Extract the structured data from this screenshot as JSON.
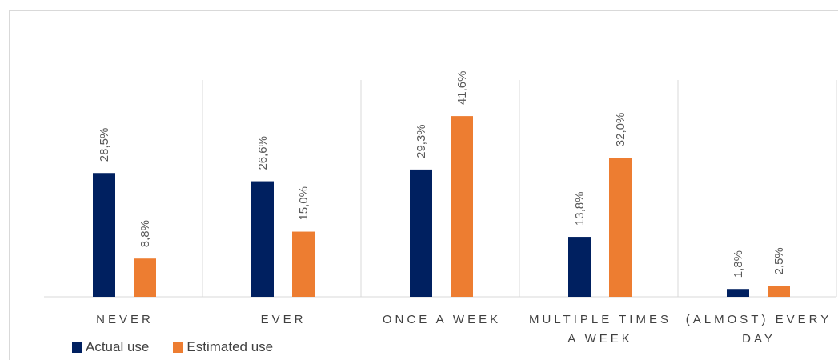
{
  "chart_data": {
    "type": "bar",
    "categories": [
      "NEVER",
      "EVER",
      "ONCE A WEEK",
      "MULTIPLE TIMES A WEEK",
      "(ALMOST) EVERY DAY"
    ],
    "category_lines": [
      [
        "NEVER"
      ],
      [
        "EVER"
      ],
      [
        "ONCE A WEEK"
      ],
      [
        "MULTIPLE TIMES",
        "A WEEK"
      ],
      [
        "(ALMOST) EVERY",
        "DAY"
      ]
    ],
    "series": [
      {
        "name": "Actual use",
        "color": "#002060",
        "values": [
          28.5,
          26.6,
          29.3,
          13.8,
          1.8
        ],
        "labels": [
          "28,5%",
          "26,6%",
          "29,3%",
          "13,8%",
          "1,8%"
        ]
      },
      {
        "name": "Estimated use",
        "color": "#ED7D31",
        "values": [
          8.8,
          15.0,
          41.6,
          32.0,
          2.5
        ],
        "labels": [
          "8,8%",
          "15,0%",
          "41,6%",
          "32,0%",
          "2,5%"
        ]
      }
    ],
    "ylim": [
      0,
      50
    ],
    "grid": false,
    "legend_position": "bottom-left"
  },
  "legend": {
    "items": [
      {
        "label": "Actual use",
        "color": "#002060"
      },
      {
        "label": "Estimated use",
        "color": "#ED7D31"
      }
    ]
  }
}
